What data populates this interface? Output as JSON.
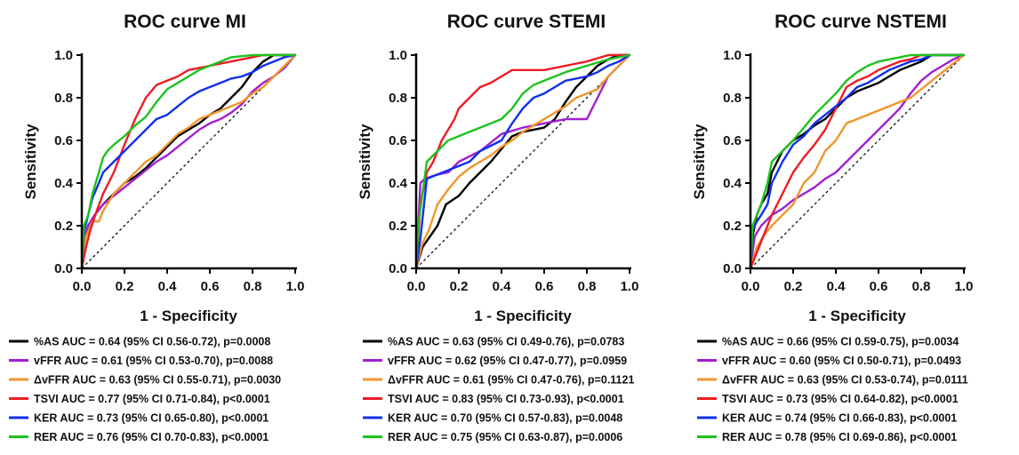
{
  "chart_data": [
    {
      "type": "line",
      "title": "ROC curve MI",
      "xlabel": "1 - Specificity",
      "ylabel": "Sensitivity",
      "xlim": [
        0,
        1
      ],
      "ylim": [
        0,
        1
      ],
      "xticks": [
        "0.0",
        "0.2",
        "0.4",
        "0.6",
        "0.8",
        "1.0"
      ],
      "yticks": [
        "0.0",
        "0.2",
        "0.4",
        "0.6",
        "0.8",
        "1.0"
      ],
      "grid": false,
      "legend_position": "bottom",
      "reference_line": true,
      "series": [
        {
          "name": "%AS AUC = 0.64 (95% CI 0.56-0.72), p=0.0008",
          "color": "#000000",
          "x": [
            0,
            0.01,
            0.03,
            0.06,
            0.1,
            0.15,
            0.2,
            0.25,
            0.3,
            0.35,
            0.4,
            0.45,
            0.5,
            0.55,
            0.6,
            0.65,
            0.7,
            0.75,
            0.8,
            0.85,
            0.9,
            1.0
          ],
          "y": [
            0,
            0.12,
            0.2,
            0.25,
            0.3,
            0.35,
            0.4,
            0.43,
            0.47,
            0.52,
            0.57,
            0.62,
            0.65,
            0.68,
            0.72,
            0.75,
            0.8,
            0.85,
            0.92,
            0.97,
            1.0,
            1.0
          ]
        },
        {
          "name": "vFFR AUC = 0.61 (95% CI 0.53-0.70), p=0.0088",
          "color": "#a020d0",
          "x": [
            0,
            0.01,
            0.03,
            0.06,
            0.1,
            0.15,
            0.2,
            0.25,
            0.3,
            0.35,
            0.4,
            0.45,
            0.5,
            0.55,
            0.6,
            0.65,
            0.7,
            0.75,
            0.8,
            0.85,
            0.9,
            0.95,
            1.0
          ],
          "y": [
            0,
            0.14,
            0.2,
            0.25,
            0.3,
            0.34,
            0.38,
            0.42,
            0.46,
            0.5,
            0.53,
            0.57,
            0.61,
            0.65,
            0.68,
            0.7,
            0.73,
            0.77,
            0.83,
            0.87,
            0.9,
            0.94,
            1.0
          ]
        },
        {
          "name": "ΔvFFR AUC = 0.63 (95% CI 0.55-0.71), p=0.0030",
          "color": "#f0962c",
          "x": [
            0,
            0.02,
            0.05,
            0.08,
            0.1,
            0.15,
            0.2,
            0.25,
            0.3,
            0.35,
            0.4,
            0.45,
            0.5,
            0.55,
            0.6,
            0.65,
            0.7,
            0.75,
            0.8,
            0.85,
            0.9,
            0.95,
            1.0
          ],
          "y": [
            0,
            0.15,
            0.22,
            0.22,
            0.27,
            0.35,
            0.4,
            0.45,
            0.5,
            0.53,
            0.58,
            0.63,
            0.66,
            0.7,
            0.72,
            0.74,
            0.76,
            0.78,
            0.82,
            0.85,
            0.9,
            0.95,
            1.0
          ]
        },
        {
          "name": "TSVI AUC = 0.77 (95% CI 0.71-0.84), p<0.0001",
          "color": "#ee1c25",
          "x": [
            0,
            0.02,
            0.04,
            0.07,
            0.1,
            0.15,
            0.2,
            0.25,
            0.3,
            0.35,
            0.4,
            0.45,
            0.5,
            0.55,
            0.6,
            0.65,
            0.7,
            0.75,
            0.8,
            0.85,
            0.9,
            1.0
          ],
          "y": [
            0,
            0.1,
            0.18,
            0.27,
            0.35,
            0.45,
            0.58,
            0.7,
            0.8,
            0.86,
            0.88,
            0.9,
            0.93,
            0.94,
            0.95,
            0.96,
            0.97,
            0.98,
            0.99,
            1.0,
            1.0,
            1.0
          ]
        },
        {
          "name": "KER AUC = 0.73 (95% CI 0.65-0.80), p<0.0001",
          "color": "#1030ee",
          "x": [
            0,
            0.01,
            0.03,
            0.05,
            0.08,
            0.1,
            0.15,
            0.2,
            0.25,
            0.3,
            0.35,
            0.4,
            0.45,
            0.5,
            0.55,
            0.6,
            0.65,
            0.7,
            0.75,
            0.8,
            0.85,
            0.9,
            0.95,
            1.0
          ],
          "y": [
            0,
            0.17,
            0.25,
            0.33,
            0.4,
            0.45,
            0.5,
            0.55,
            0.6,
            0.65,
            0.7,
            0.72,
            0.76,
            0.8,
            0.83,
            0.85,
            0.87,
            0.89,
            0.9,
            0.92,
            0.95,
            0.97,
            0.99,
            1.0
          ]
        },
        {
          "name": "RER AUC = 0.76 (95% CI 0.70-0.83), p<0.0001",
          "color": "#1ec21e",
          "x": [
            0,
            0.01,
            0.03,
            0.05,
            0.08,
            0.1,
            0.12,
            0.15,
            0.2,
            0.25,
            0.3,
            0.35,
            0.4,
            0.45,
            0.5,
            0.55,
            0.6,
            0.65,
            0.7,
            0.8,
            0.9,
            1.0
          ],
          "y": [
            0,
            0.2,
            0.25,
            0.35,
            0.45,
            0.52,
            0.55,
            0.58,
            0.62,
            0.67,
            0.71,
            0.78,
            0.84,
            0.87,
            0.9,
            0.93,
            0.95,
            0.97,
            0.99,
            1.0,
            1.0,
            1.0
          ]
        }
      ]
    },
    {
      "type": "line",
      "title": "ROC curve STEMI",
      "xlabel": "1 - Specificity",
      "ylabel": "Sensitivity",
      "xlim": [
        0,
        1
      ],
      "ylim": [
        0,
        1
      ],
      "xticks": [
        "0.0",
        "0.2",
        "0.4",
        "0.6",
        "0.8",
        "1.0"
      ],
      "yticks": [
        "0.0",
        "0.2",
        "0.4",
        "0.6",
        "0.8",
        "1.0"
      ],
      "grid": false,
      "legend_position": "bottom",
      "reference_line": true,
      "series": [
        {
          "name": "%AS AUC = 0.63 (95% CI 0.49-0.76), p=0.0783",
          "color": "#000000",
          "x": [
            0,
            0.03,
            0.1,
            0.14,
            0.2,
            0.25,
            0.3,
            0.35,
            0.4,
            0.45,
            0.5,
            0.6,
            0.65,
            0.7,
            0.75,
            0.8,
            0.85,
            0.9,
            0.95,
            1.0
          ],
          "y": [
            0,
            0.1,
            0.2,
            0.3,
            0.34,
            0.4,
            0.45,
            0.5,
            0.56,
            0.62,
            0.64,
            0.66,
            0.7,
            0.78,
            0.85,
            0.9,
            0.95,
            0.98,
            1.0,
            1.0
          ]
        },
        {
          "name": "vFFR AUC = 0.62 (95% CI 0.47-0.77), p=0.0959",
          "color": "#a020d0",
          "x": [
            0,
            0.02,
            0.04,
            0.1,
            0.15,
            0.2,
            0.3,
            0.4,
            0.5,
            0.6,
            0.7,
            0.8,
            0.85,
            0.9,
            0.95,
            1.0
          ],
          "y": [
            0,
            0.4,
            0.42,
            0.44,
            0.45,
            0.5,
            0.55,
            0.63,
            0.66,
            0.68,
            0.7,
            0.7,
            0.8,
            0.9,
            0.95,
            1.0
          ]
        },
        {
          "name": "ΔvFFR AUC = 0.61 (95% CI 0.47-0.76), p=0.1121",
          "color": "#f0962c",
          "x": [
            0,
            0.03,
            0.06,
            0.1,
            0.15,
            0.2,
            0.25,
            0.3,
            0.35,
            0.4,
            0.45,
            0.5,
            0.55,
            0.6,
            0.65,
            0.7,
            0.75,
            0.8,
            0.85,
            0.9,
            0.95,
            1.0
          ],
          "y": [
            0,
            0.12,
            0.18,
            0.3,
            0.37,
            0.43,
            0.47,
            0.5,
            0.53,
            0.57,
            0.6,
            0.64,
            0.67,
            0.7,
            0.73,
            0.76,
            0.8,
            0.82,
            0.84,
            0.9,
            0.95,
            1.0
          ]
        },
        {
          "name": "TSVI AUC = 0.83 (95% CI 0.73-0.93), p<0.0001",
          "color": "#ee1c25",
          "x": [
            0,
            0.02,
            0.05,
            0.08,
            0.1,
            0.12,
            0.15,
            0.18,
            0.2,
            0.25,
            0.3,
            0.35,
            0.4,
            0.45,
            0.5,
            0.6,
            0.7,
            0.8,
            0.9,
            1.0
          ],
          "y": [
            0,
            0.3,
            0.45,
            0.5,
            0.55,
            0.6,
            0.65,
            0.7,
            0.75,
            0.8,
            0.85,
            0.87,
            0.9,
            0.93,
            0.93,
            0.93,
            0.95,
            0.97,
            1.0,
            1.0
          ]
        },
        {
          "name": "KER AUC = 0.70 (95% CI 0.57-0.83), p=0.0048",
          "color": "#1030ee",
          "x": [
            0,
            0.02,
            0.05,
            0.1,
            0.2,
            0.25,
            0.3,
            0.4,
            0.45,
            0.5,
            0.55,
            0.6,
            0.65,
            0.7,
            0.8,
            0.85,
            0.9,
            0.95,
            1.0
          ],
          "y": [
            0,
            0.14,
            0.42,
            0.44,
            0.48,
            0.5,
            0.55,
            0.6,
            0.68,
            0.75,
            0.8,
            0.82,
            0.85,
            0.88,
            0.9,
            0.92,
            0.95,
            0.97,
            1.0
          ]
        },
        {
          "name": "RER AUC = 0.75 (95% CI 0.63-0.87), p=0.0006",
          "color": "#1ec21e",
          "x": [
            0,
            0.01,
            0.03,
            0.05,
            0.1,
            0.15,
            0.2,
            0.25,
            0.3,
            0.4,
            0.45,
            0.5,
            0.55,
            0.6,
            0.65,
            0.7,
            0.8,
            0.9,
            1.0
          ],
          "y": [
            0,
            0.2,
            0.35,
            0.5,
            0.55,
            0.6,
            0.62,
            0.64,
            0.66,
            0.7,
            0.75,
            0.82,
            0.86,
            0.88,
            0.9,
            0.92,
            0.95,
            0.98,
            1.0
          ]
        }
      ]
    },
    {
      "type": "line",
      "title": "ROC curve NSTEMI",
      "xlabel": "1 - Specificity",
      "ylabel": "Sensitivity",
      "xlim": [
        0,
        1
      ],
      "ylim": [
        0,
        1
      ],
      "xticks": [
        "0.0",
        "0.2",
        "0.4",
        "0.6",
        "0.8",
        "1.0"
      ],
      "yticks": [
        "0.0",
        "0.2",
        "0.4",
        "0.6",
        "0.8",
        "1.0"
      ],
      "grid": false,
      "legend_position": "bottom",
      "reference_line": true,
      "series": [
        {
          "name": "%AS AUC = 0.66 (95% CI 0.59-0.75), p=0.0034",
          "color": "#000000",
          "x": [
            0,
            0.01,
            0.03,
            0.05,
            0.08,
            0.1,
            0.15,
            0.2,
            0.25,
            0.3,
            0.35,
            0.4,
            0.45,
            0.5,
            0.55,
            0.6,
            0.65,
            0.7,
            0.75,
            0.8,
            0.85,
            0.9,
            1.0
          ],
          "y": [
            0,
            0.15,
            0.25,
            0.3,
            0.35,
            0.45,
            0.55,
            0.6,
            0.63,
            0.67,
            0.7,
            0.75,
            0.8,
            0.83,
            0.85,
            0.87,
            0.9,
            0.93,
            0.95,
            0.97,
            1.0,
            1.0,
            1.0
          ]
        },
        {
          "name": "vFFR AUC = 0.60 (95% CI 0.50-0.71), p=0.0493",
          "color": "#a020d0",
          "x": [
            0,
            0.02,
            0.05,
            0.1,
            0.15,
            0.2,
            0.25,
            0.3,
            0.35,
            0.4,
            0.45,
            0.5,
            0.55,
            0.6,
            0.65,
            0.7,
            0.75,
            0.8,
            0.85,
            0.9,
            0.95,
            1.0
          ],
          "y": [
            0,
            0.15,
            0.2,
            0.25,
            0.28,
            0.32,
            0.35,
            0.38,
            0.42,
            0.45,
            0.5,
            0.55,
            0.6,
            0.65,
            0.7,
            0.75,
            0.82,
            0.88,
            0.92,
            0.95,
            0.98,
            1.0
          ]
        },
        {
          "name": "ΔvFFR AUC = 0.63 (95% CI 0.53-0.74), p=0.0111",
          "color": "#f0962c",
          "x": [
            0,
            0.03,
            0.06,
            0.1,
            0.15,
            0.2,
            0.25,
            0.3,
            0.35,
            0.4,
            0.45,
            0.5,
            0.55,
            0.6,
            0.65,
            0.7,
            0.75,
            0.8,
            0.85,
            0.9,
            0.95,
            1.0
          ],
          "y": [
            0,
            0.1,
            0.15,
            0.2,
            0.25,
            0.3,
            0.4,
            0.45,
            0.55,
            0.6,
            0.68,
            0.7,
            0.72,
            0.74,
            0.76,
            0.78,
            0.8,
            0.84,
            0.88,
            0.92,
            0.96,
            1.0
          ]
        },
        {
          "name": "TSVI AUC = 0.73 (95% CI 0.64-0.82), p<0.0001",
          "color": "#ee1c25",
          "x": [
            0,
            0.02,
            0.04,
            0.06,
            0.08,
            0.1,
            0.15,
            0.2,
            0.25,
            0.3,
            0.35,
            0.4,
            0.45,
            0.5,
            0.55,
            0.6,
            0.65,
            0.7,
            0.75,
            0.8,
            0.85,
            0.9,
            1.0
          ],
          "y": [
            0,
            0.05,
            0.1,
            0.15,
            0.2,
            0.25,
            0.35,
            0.45,
            0.52,
            0.58,
            0.65,
            0.75,
            0.85,
            0.88,
            0.9,
            0.93,
            0.95,
            0.97,
            0.98,
            1.0,
            1.0,
            1.0,
            1.0
          ]
        },
        {
          "name": "KER AUC = 0.74 (95% CI 0.66-0.83), p<0.0001",
          "color": "#1030ee",
          "x": [
            0,
            0.01,
            0.03,
            0.05,
            0.08,
            0.1,
            0.15,
            0.2,
            0.25,
            0.3,
            0.35,
            0.4,
            0.45,
            0.5,
            0.55,
            0.6,
            0.65,
            0.7,
            0.75,
            0.8,
            0.85,
            0.9,
            1.0
          ],
          "y": [
            0,
            0.18,
            0.22,
            0.25,
            0.3,
            0.4,
            0.5,
            0.58,
            0.62,
            0.68,
            0.72,
            0.76,
            0.8,
            0.85,
            0.87,
            0.9,
            0.93,
            0.95,
            0.97,
            0.98,
            1.0,
            1.0,
            1.0
          ]
        },
        {
          "name": "RER AUC = 0.78 (95% CI 0.69-0.86), p<0.0001",
          "color": "#1ec21e",
          "x": [
            0,
            0.01,
            0.03,
            0.05,
            0.08,
            0.1,
            0.15,
            0.2,
            0.25,
            0.3,
            0.35,
            0.4,
            0.45,
            0.5,
            0.55,
            0.6,
            0.65,
            0.7,
            0.75,
            0.8,
            0.9,
            1.0
          ],
          "y": [
            0,
            0.2,
            0.25,
            0.3,
            0.4,
            0.5,
            0.55,
            0.6,
            0.66,
            0.72,
            0.77,
            0.82,
            0.88,
            0.92,
            0.95,
            0.97,
            0.98,
            0.99,
            1.0,
            1.0,
            1.0,
            1.0
          ]
        }
      ]
    }
  ]
}
